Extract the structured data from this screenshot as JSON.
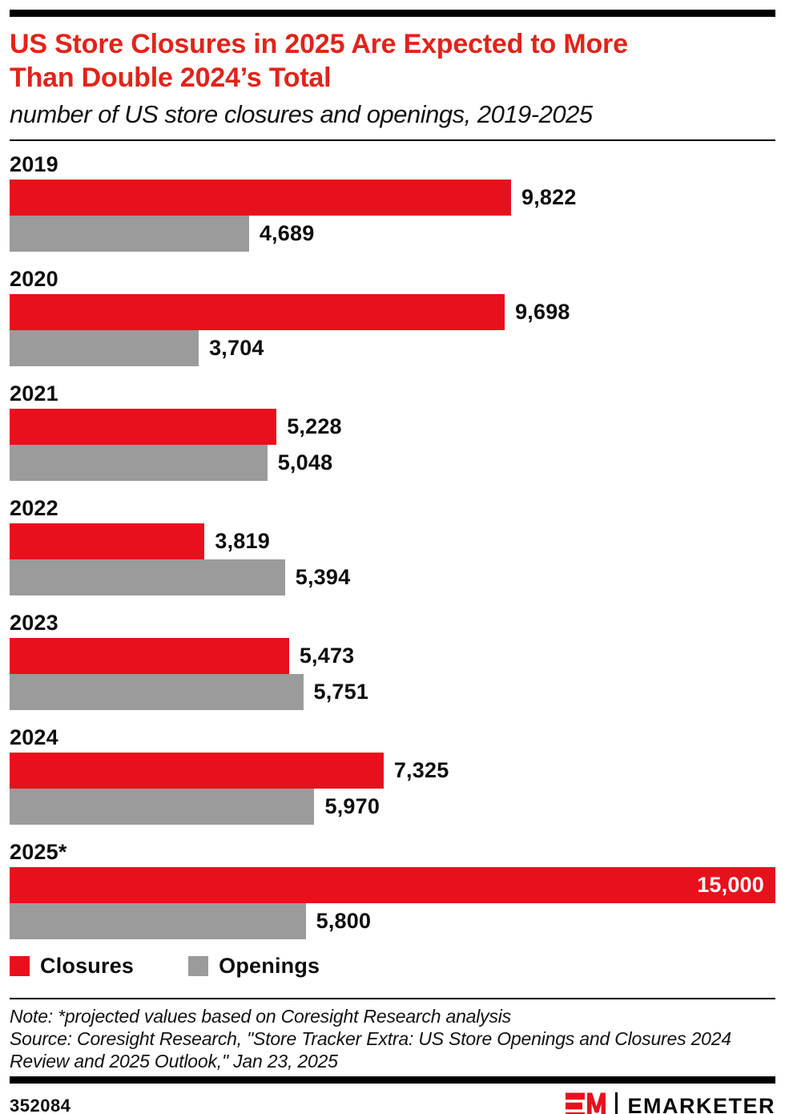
{
  "header": {
    "title_lines": [
      "US Store Closures in 2025 Are Expected to More",
      "Than Double 2024’s Total"
    ],
    "title_color": "#e2231a",
    "subtitle": "number of US store closures and openings, 2019-2025"
  },
  "chart_data": {
    "type": "bar",
    "orientation": "horizontal",
    "title": "US Store Closures in 2025 Are Expected to More Than Double 2024’s Total",
    "subtitle": "number of US store closures and openings, 2019-2025",
    "categories": [
      "2019",
      "2020",
      "2021",
      "2022",
      "2023",
      "2024",
      "2025*"
    ],
    "series": [
      {
        "name": "Closures",
        "color": "#e8101c",
        "values": [
          9822,
          9698,
          5228,
          3819,
          5473,
          7325,
          15000
        ]
      },
      {
        "name": "Openings",
        "color": "#9b9b9b",
        "values": [
          4689,
          3704,
          5048,
          5394,
          5751,
          5970,
          5800
        ]
      }
    ],
    "value_labels": {
      "Closures": [
        "9,822",
        "9,698",
        "5,228",
        "3,819",
        "5,473",
        "7,325",
        "15,000"
      ],
      "Openings": [
        "4,689",
        "3,704",
        "5,048",
        "5,394",
        "5,751",
        "5,970",
        "5,800"
      ]
    },
    "xmax": 15000,
    "grid": false,
    "legend_position": "bottom"
  },
  "footnotes": {
    "note": "Note: *projected values based on Coresight Research analysis",
    "source": "Source: Coresight Research, \"Store Tracker Extra: US Store Openings and Closures 2024 Review and 2025 Outlook,\" Jan 23, 2025"
  },
  "footer": {
    "chart_id": "352084",
    "brand": "EMARKETER"
  },
  "icons": {
    "em_logo": "em-logo-mark"
  }
}
